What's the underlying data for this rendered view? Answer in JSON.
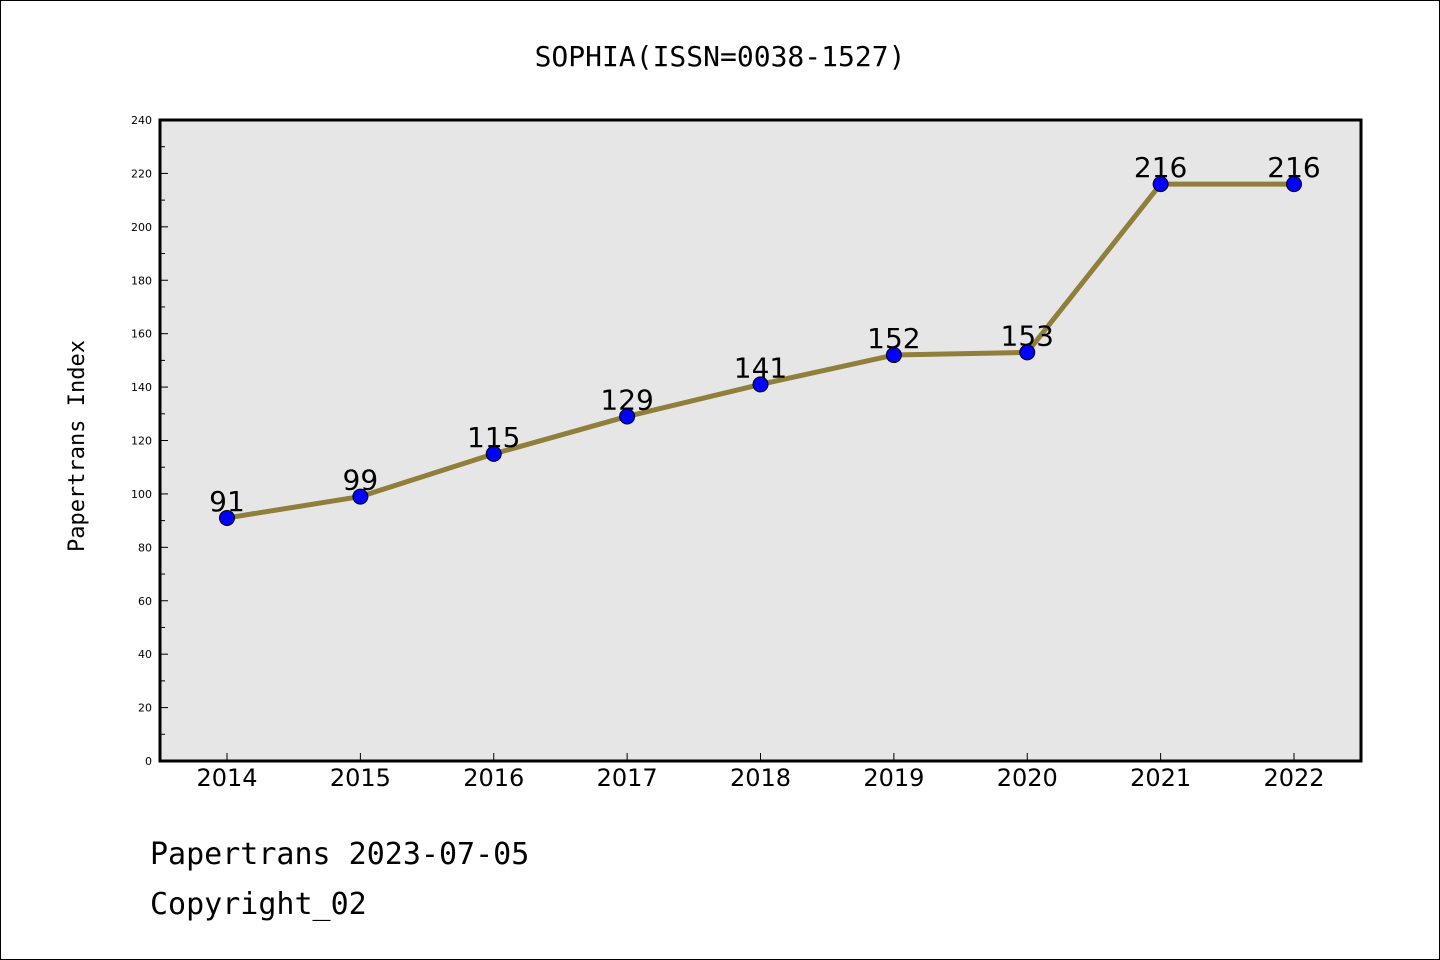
{
  "chart_data": {
    "type": "line",
    "title": "SOPHIA(ISSN=0038-1527)",
    "xlabel": "",
    "ylabel": "Papertrans Index",
    "categories": [
      "2014",
      "2015",
      "2016",
      "2017",
      "2018",
      "2019",
      "2020",
      "2021",
      "2022"
    ],
    "series": [
      {
        "values": [
          91,
          99,
          115,
          129,
          141,
          152,
          153,
          216,
          216
        ]
      }
    ],
    "data_labels": [
      "91",
      "99",
      "115",
      "129",
      "141",
      "152",
      "153",
      "216",
      "216"
    ],
    "ylim": [
      0,
      240
    ],
    "y_ticks": [
      "0",
      "20",
      "40",
      "60",
      "80",
      "100",
      "120",
      "140",
      "160",
      "180",
      "200",
      "220",
      "240"
    ],
    "grid": false,
    "legend": "none",
    "colors": {
      "line": "#8f7f3a",
      "marker": "#0000ff",
      "plot_bg": "#e6e6e6"
    }
  },
  "footer": {
    "line1": "Papertrans 2023-07-05",
    "line2": "Copyright_02"
  }
}
